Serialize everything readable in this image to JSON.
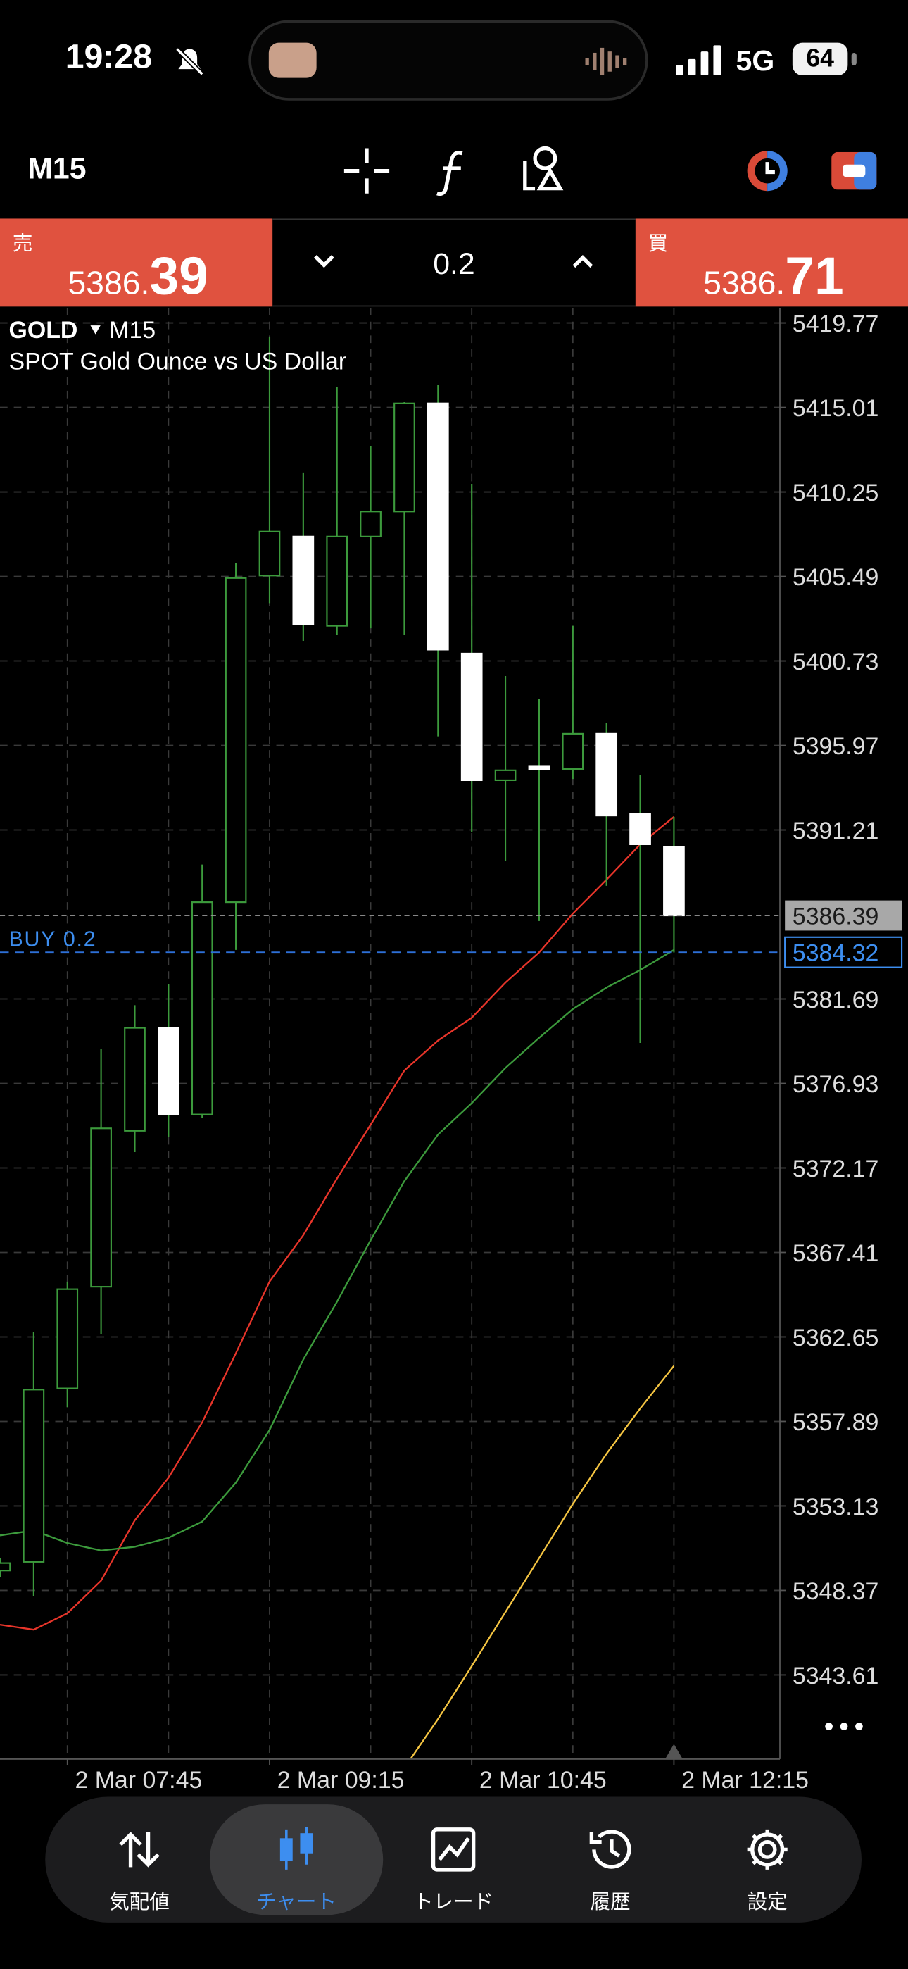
{
  "status_bar": {
    "time": "19:28",
    "network": "5G",
    "battery": "64"
  },
  "toolbar": {
    "timeframe": "M15"
  },
  "quote_bar": {
    "sell": {
      "label": "売",
      "price": "5386.",
      "pips": "39"
    },
    "volume": "0.2",
    "buy": {
      "label": "買",
      "price": "5386.",
      "pips": "71"
    }
  },
  "chart": {
    "type": "candlestick",
    "symbol": "GOLD",
    "timeframe": "M15",
    "description": "SPOT Gold Ounce vs US Dollar",
    "categories": [
      null,
      null,
      "2 Mar 07:45",
      null,
      null,
      null,
      null,
      null,
      "2 Mar 09:15",
      null,
      null,
      null,
      null,
      null,
      "2 Mar 10:45",
      null,
      null,
      null,
      null,
      null,
      "2 Mar 12:15"
    ],
    "open": [
      5349.49,
      5349.98,
      5359.75,
      5365.48,
      5374.26,
      5380.06,
      5375.18,
      5387.14,
      5405.54,
      5407.74,
      5402.71,
      5407.74,
      5409.15,
      5415.24,
      5401.15,
      5394.01,
      5394.78,
      5394.64,
      5396.63,
      5392.1,
      5390.25
    ],
    "high": [
      5350.19,
      5362.93,
      5365.77,
      5378.86,
      5381.34,
      5382.54,
      5389.26,
      5406.25,
      5418.99,
      5411.35,
      5416.16,
      5412.83,
      5415.31,
      5416.3,
      5410.71,
      5399.88,
      5398.61,
      5402.71,
      5397.26,
      5394.29,
      5391.95
    ],
    "low": [
      5349.13,
      5348.07,
      5358.69,
      5362.79,
      5373.06,
      5373.9,
      5374.97,
      5384.45,
      5403.99,
      5401.86,
      5402.22,
      5402.57,
      5402.22,
      5396.48,
      5391.1,
      5389.48,
      5386.08,
      5394.08,
      5388.06,
      5379.21,
      5384.31
    ],
    "close": [
      5349.91,
      5359.68,
      5365.34,
      5374.4,
      5380.06,
      5375.18,
      5387.14,
      5405.4,
      5408.02,
      5402.78,
      5407.74,
      5409.15,
      5415.24,
      5401.37,
      5394.01,
      5394.57,
      5394.78,
      5396.63,
      5392.02,
      5390.4,
      5386.39
    ],
    "up_color": "#3c9a3c",
    "down_color": "#ffffff",
    "lines": [
      {
        "color": "#e8352a",
        "values": [
          5346.44,
          5346.16,
          5347.08,
          5348.92,
          5352.32,
          5354.72,
          5357.84,
          5361.73,
          5365.77,
          5368.38,
          5371.57,
          5374.61,
          5377.66,
          5379.35,
          5380.63,
          5382.61,
          5384.31,
          5386.5,
          5388.41,
          5390.4,
          5391.95
        ]
      },
      {
        "color": "#3c9a3c",
        "values": [
          5351.47,
          5351.75,
          5351.04,
          5350.62,
          5350.83,
          5351.33,
          5352.25,
          5354.44,
          5357.41,
          5361.38,
          5364.63,
          5368.1,
          5371.43,
          5374.05,
          5375.82,
          5377.8,
          5379.5,
          5381.12,
          5382.33,
          5383.32,
          5384.45
        ]
      },
      {
        "color": "#f5c542",
        "values": [
          null,
          null,
          null,
          null,
          null,
          null,
          null,
          null,
          null,
          null,
          null,
          null,
          5338.37,
          5341.13,
          5344.11,
          5347.15,
          5350.19,
          5353.24,
          5356.07,
          5358.62,
          5361.02
        ]
      }
    ],
    "ylim": [
      5338.87,
      5420.62
    ],
    "yticks": [
      5419.77,
      5415.01,
      5410.25,
      5405.49,
      5400.73,
      5395.97,
      5391.21,
      5381.69,
      5376.93,
      5372.17,
      5367.41,
      5362.65,
      5357.89,
      5353.13,
      5348.37,
      5343.61
    ],
    "grid": true,
    "bid_line": {
      "value": 5386.39
    },
    "position": {
      "label": "BUY 0.2",
      "value": 5384.32
    }
  },
  "nav": {
    "items": [
      "気配値",
      "チャート",
      "トレード",
      "履歴",
      "設定"
    ],
    "active": 1
  }
}
